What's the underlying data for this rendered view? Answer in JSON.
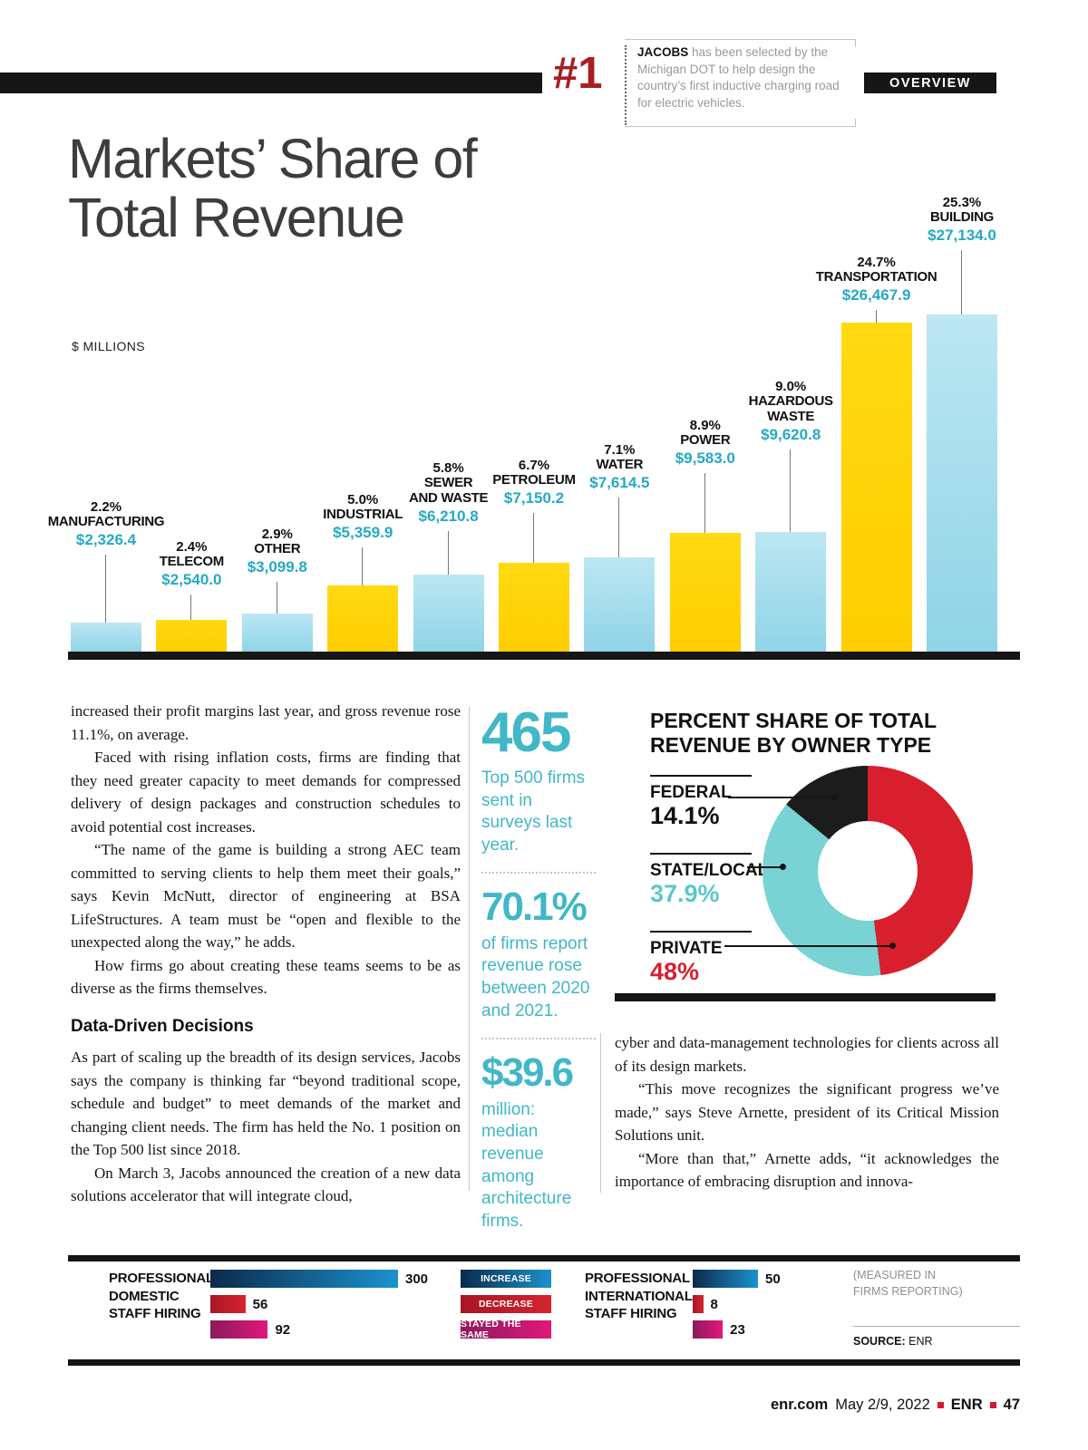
{
  "masthead": {
    "rank": "#1",
    "overview": "OVERVIEW",
    "callout_brand": "JACOBS",
    "callout_text": "has been selected by the Michigan DOT to help design the country’s first inductive charging road for electric vehicles."
  },
  "title": "Markets’ Share of\nTotal Revenue",
  "chart_data": [
    {
      "type": "bar",
      "title": "Markets’ Share of Total Revenue",
      "units": "$ MILLIONS",
      "categories": [
        "MANUFACTURING",
        "TELECOM",
        "OTHER",
        "INDUSTRIAL",
        "SEWER\nAND WASTE",
        "PETROLEUM",
        "WATER",
        "POWER",
        "HAZARDOUS\nWASTE",
        "TRANSPORTATION",
        "BUILDING"
      ],
      "percent_labels": [
        "2.2%",
        "2.4%",
        "2.9%",
        "5.0%",
        "5.8%",
        "6.7%",
        "7.1%",
        "8.9%",
        "9.0%",
        "24.7%",
        "25.3%"
      ],
      "values": [
        2326.4,
        2540.0,
        3099.8,
        5359.9,
        6210.8,
        7150.2,
        7614.5,
        9583.0,
        9620.8,
        26467.9,
        27134.0
      ],
      "value_labels": [
        "$2,326.4",
        "$2,540.0",
        "$3,099.8",
        "$5,359.9",
        "$6,210.8",
        "$7,150.2",
        "$7,614.5",
        "$9,583.0",
        "$9,620.8",
        "$26,467.9",
        "$27,134.0"
      ],
      "value_color": "#25a9c4",
      "bar_palette": {
        "even": [
          "#bce7f3",
          "#8fd4e7"
        ],
        "odd": [
          "#ffda12",
          "#ffce00"
        ]
      },
      "label_raise": [
        111,
        67,
        81,
        119,
        137,
        157,
        174,
        201,
        227,
        381,
        447
      ]
    },
    {
      "type": "pie",
      "title": "PERCENT SHARE OF TOTAL REVENUE BY OWNER TYPE",
      "slices": [
        {
          "label": "FEDERAL",
          "value": 14.1,
          "display": "14.1%",
          "color": "#1c1c1c",
          "value_color": "#111111"
        },
        {
          "label": "STATE/LOCAL",
          "value": 37.9,
          "display": "37.9%",
          "color": "#79d2d3",
          "value_color": "#5cc7c9"
        },
        {
          "label": "PRIVATE",
          "value": 48,
          "display": "48%",
          "color": "#d71f2e",
          "value_color": "#d71f2e"
        }
      ]
    },
    {
      "type": "bar",
      "orientation": "horizontal",
      "legend": [
        "INCREASE",
        "DECREASE",
        "STAYED THE SAME"
      ],
      "groups": [
        {
          "label": "PROFESSIONAL\nDOMESTIC\nSTAFF HIRING",
          "values": [
            300,
            56,
            92
          ]
        },
        {
          "label": "PROFESSIONAL\nINTERNATIONAL\nSTAFF HIRING",
          "values": [
            50,
            8,
            23
          ]
        }
      ],
      "series_colors": {
        "increase": [
          "#0b2a4a",
          "#1b92d0"
        ],
        "decrease": [
          "#a81623",
          "#d5242e"
        ],
        "same": [
          "#8c1a5c",
          "#e0187a"
        ]
      },
      "note": "(MEASURED IN\nFIRMS REPORTING)",
      "source_label": "SOURCE:",
      "source_value": "ENR"
    }
  ],
  "article": {
    "left_paragraphs": [
      "increased their profit margins last year, and gross revenue rose 11.1%, on average.",
      "Faced with rising inflation costs, firms are finding that they need greater capacity to meet demands for compressed delivery of design packages and construction schedules to avoid potential cost increases.",
      "“The name of the game is building a strong AEC team committed to serving clients to help them meet their goals,” says Kevin McNutt, director of engineering at BSA LifeStructures. A team must be “open and flexible to the unexpected along the way,” he adds.",
      "How firms go about creating these teams seems to be as diverse as the firms themselves."
    ],
    "subheading": "Data-Driven Decisions",
    "left_paragraphs_2": [
      "As part of scaling up the breadth of its design services, Jacobs says the company is thinking far “beyond traditional scope, schedule and budget” to meet demands of the market and changing client needs. The firm has held the No. 1 position on the Top 500 list since 2018.",
      "On March 3, Jacobs announced the creation of a new data solutions accelerator that will integrate cloud,"
    ],
    "right_paragraphs": [
      "cyber and data-management technologies for clients across all of its design markets.",
      "“This move recognizes the significant progress we’ve made,” says Steve Arnette, president of its Critical Mission Solutions unit.",
      "“More than that,” Arnette adds, “it acknowledges the importance of embracing disruption and innova-"
    ]
  },
  "stats": [
    {
      "value": "465",
      "text": "Top 500 firms sent in surveys last year."
    },
    {
      "value": "70.1%",
      "text": "of firms report revenue rose between 2020 and 2021."
    },
    {
      "value": "$39.6",
      "text": "million: median revenue among architecture firms."
    }
  ],
  "colors": {
    "accent_teal": "#25a9c4",
    "stat_teal": "#41b7c7",
    "accent_red": "#d7182f",
    "ink": "#161616"
  },
  "footer": {
    "site": "enr.com",
    "date": "May 2/9, 2022",
    "brand": "ENR",
    "page_number": "47"
  }
}
